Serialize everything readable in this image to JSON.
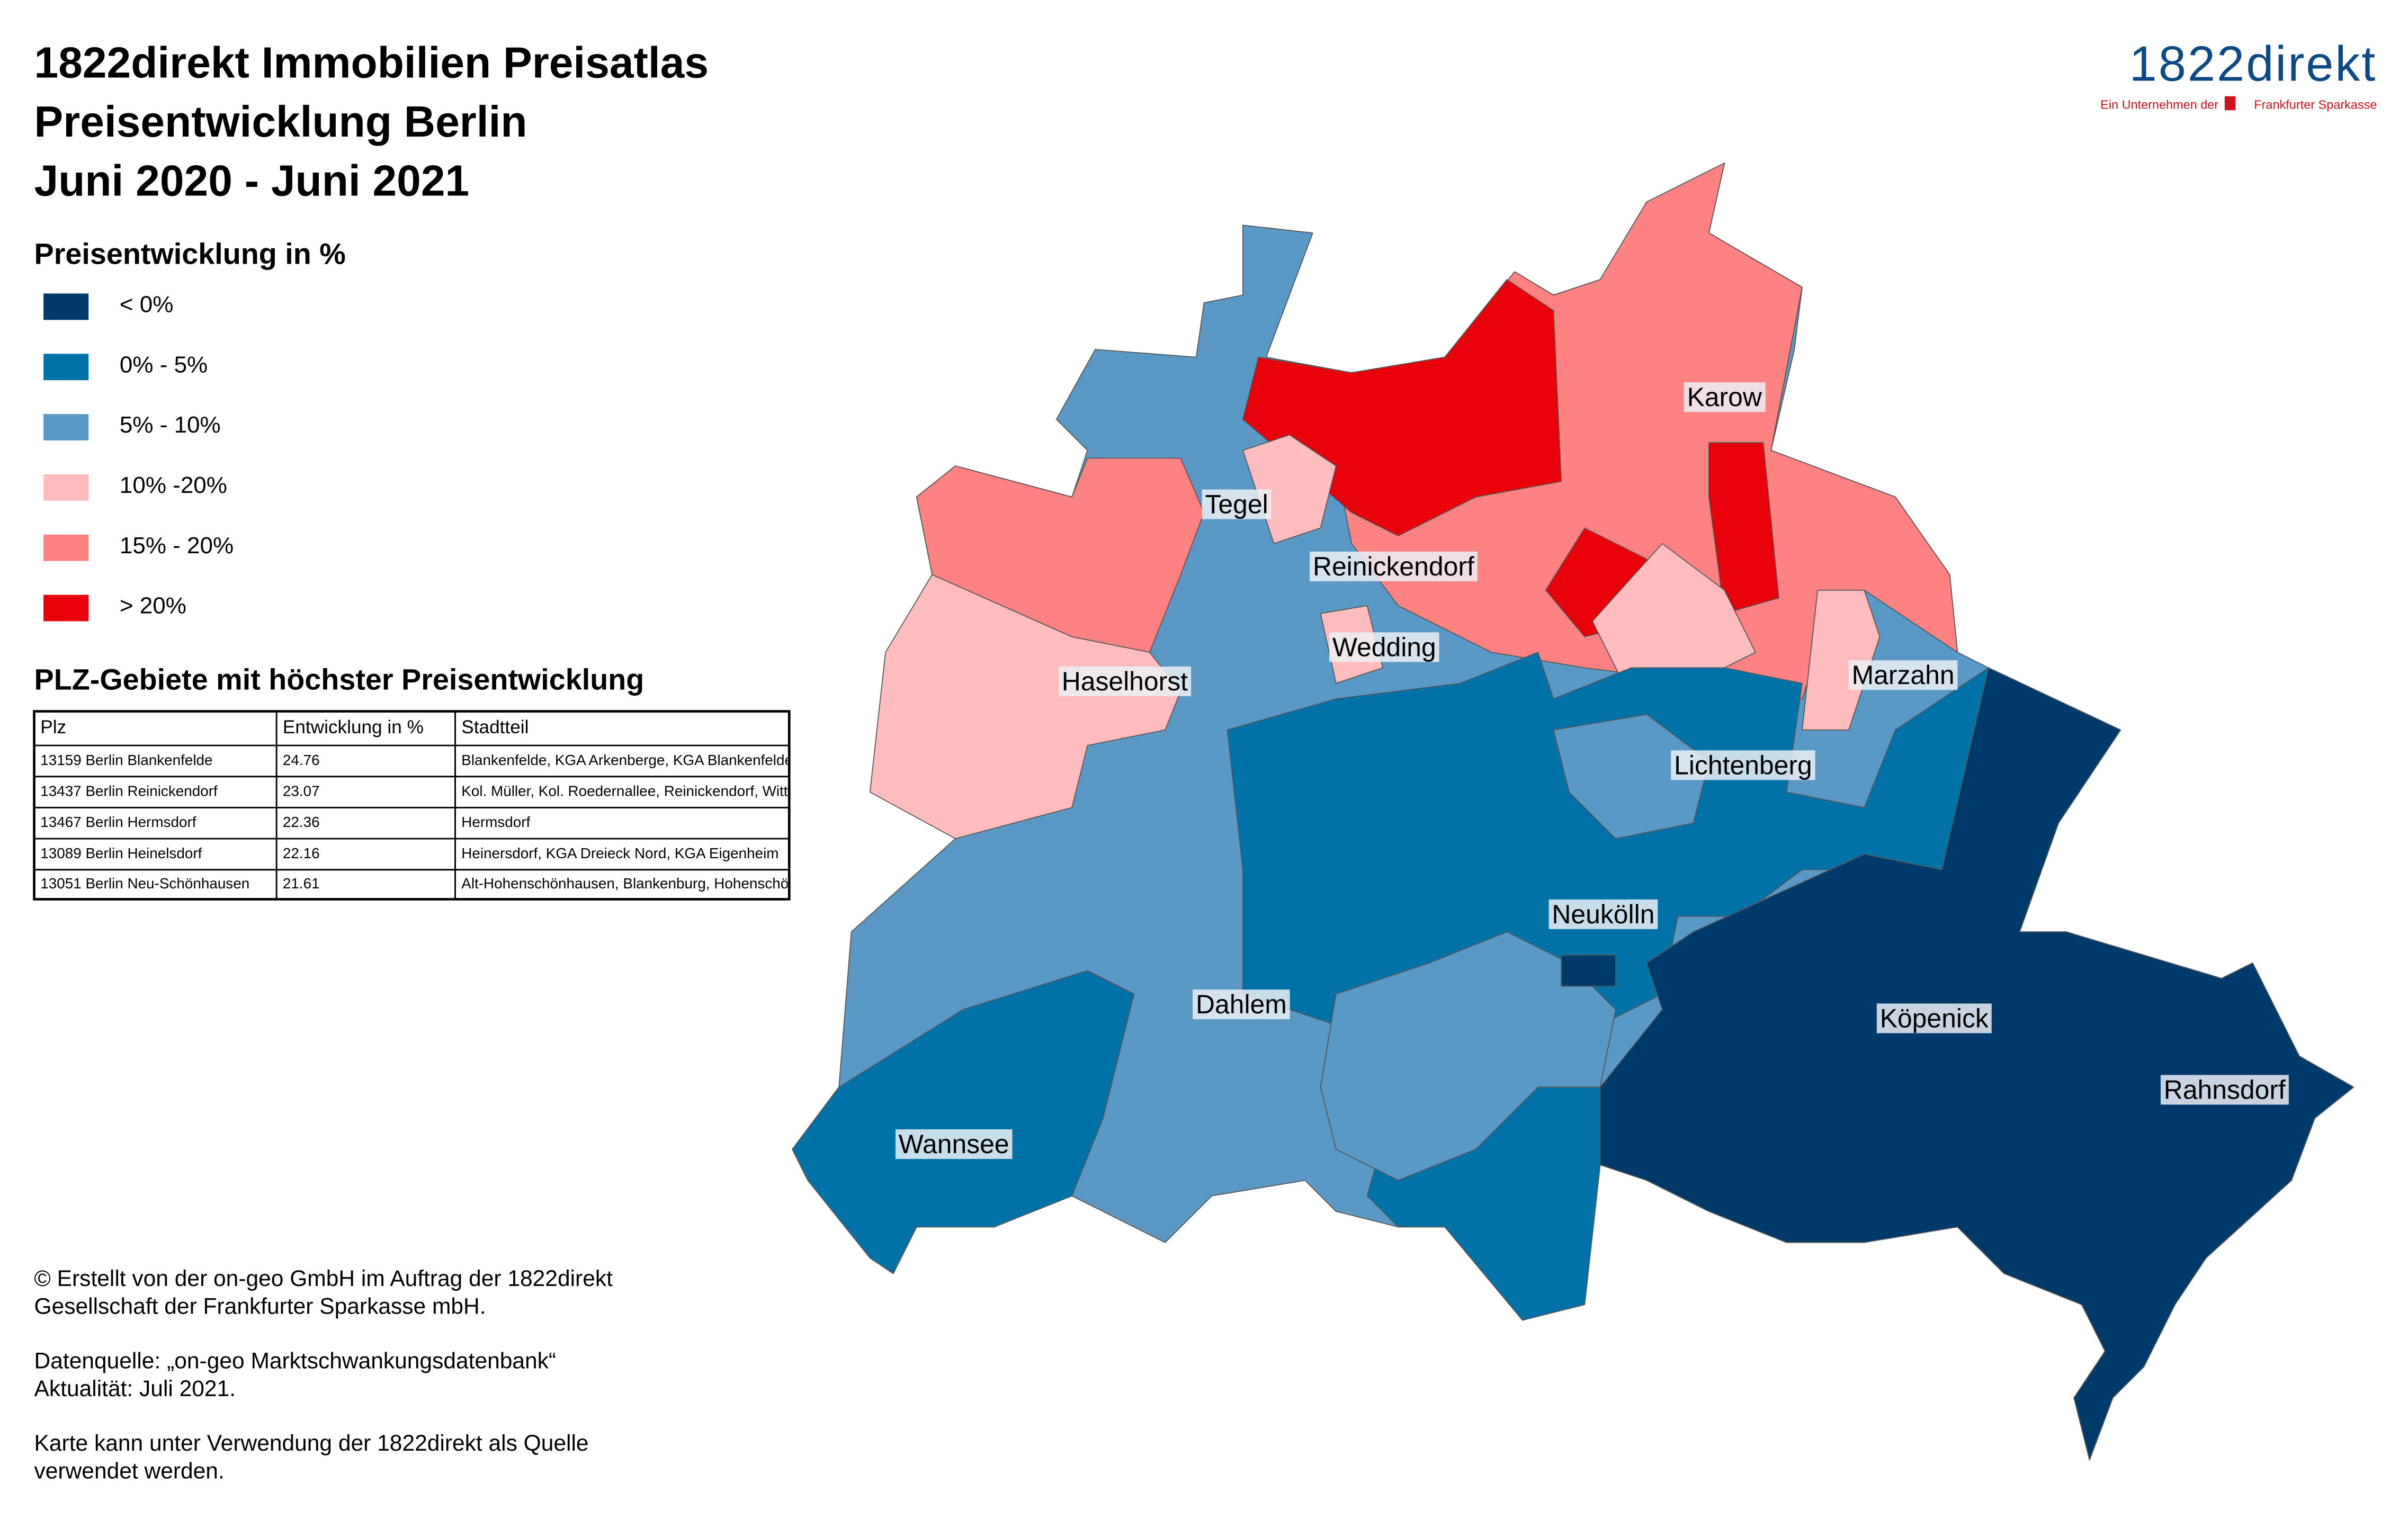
{
  "header": {
    "title_lines": [
      "1822direkt Immobilien Preisatlas",
      "Preisentwicklung Berlin",
      "Juni 2020 - Juni 2021"
    ]
  },
  "logo": {
    "brand": "1822direkt",
    "tagline": "Ein Unternehmen der",
    "parent": "Frankfurter Sparkasse"
  },
  "legend": {
    "title": "Preisentwicklung in %",
    "items": [
      {
        "label": "< 0%",
        "color": "#003a6b"
      },
      {
        "label": "0% - 5%",
        "color": "#0072a8"
      },
      {
        "label": "5% - 10%",
        "color": "#5a98c6"
      },
      {
        "label": "10% -20%",
        "color": "#ffbcbe"
      },
      {
        "label": "15% - 20%",
        "color": "#ff8282"
      },
      {
        "label": "> 20%",
        "color": "#e8000b"
      }
    ]
  },
  "table": {
    "title": "PLZ-Gebiete mit höchster Preisentwicklung",
    "columns": [
      "Plz",
      "Entwicklung in %",
      "Stadtteil"
    ],
    "rows": [
      [
        "13159 Berlin Blankenfelde",
        "24.76",
        "Blankenfelde, KGA Arkenberge, KGA Blankenfelde"
      ],
      [
        "13437 Berlin Reinickendorf",
        "23.07",
        "Kol. Müller, Kol. Roedernallee, Reinickendorf, Wittenau"
      ],
      [
        "13467 Berlin Hermsdorf",
        "22.36",
        "Hermsdorf"
      ],
      [
        "13089 Berlin Heinelsdorf",
        "22.16",
        "Heinersdorf, KGA Dreieck Nord, KGA Eigenheim"
      ],
      [
        "13051 Berlin Neu-Schönhausen",
        "21.61",
        "Alt-Hohenschönhausen, Blankenburg, Hohenschönhausen"
      ]
    ]
  },
  "map": {
    "labels": [
      "Karow",
      "Tegel",
      "Reinickendorf",
      "Wedding",
      "Haselhorst",
      "Marzahn",
      "Lichtenberg",
      "Neukölln",
      "Dahlem",
      "Köpenick",
      "Rahnsdorf",
      "Wannsee"
    ]
  },
  "footer": {
    "paragraphs": [
      [
        "© Erstellt von der on-geo GmbH im Auftrag der 1822direkt",
        "Gesellschaft der Frankfurter Sparkasse mbH."
      ],
      [
        "Datenquelle: „on-geo Marktschwankungsdatenbank“",
        "Aktualität: Juli 2021."
      ],
      [
        "Karte kann unter Verwendung der 1822direkt als Quelle",
        "verwendet werden."
      ]
    ]
  }
}
